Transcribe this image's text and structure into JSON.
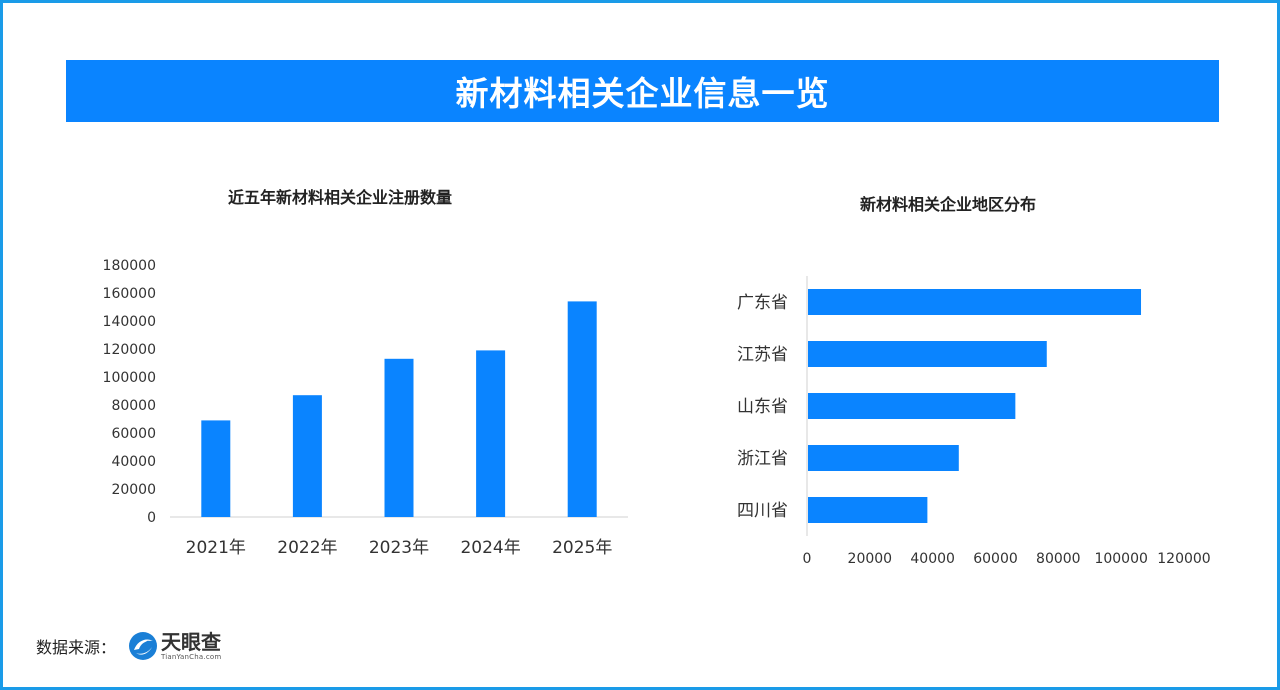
{
  "banner": {
    "title": "新材料相关企业信息一览"
  },
  "source": {
    "label": "数据来源：",
    "logo_cn": "天眼查",
    "logo_en": "TianYanCha.com"
  },
  "colors": {
    "accent": "#0a84ff",
    "frame": "#1a9be8"
  },
  "chart_data": [
    {
      "type": "bar",
      "title": "近五年新材料相关企业注册数量",
      "categories": [
        "2021年",
        "2022年",
        "2023年",
        "2024年",
        "2025年"
      ],
      "values": [
        69000,
        87000,
        113000,
        119000,
        154000
      ],
      "ylim": [
        0,
        180000
      ],
      "yticks": [
        0,
        20000,
        40000,
        60000,
        80000,
        100000,
        120000,
        140000,
        160000,
        180000
      ],
      "grid": false,
      "color": "#0a84ff"
    },
    {
      "type": "bar",
      "orientation": "horizontal",
      "title": "新材料相关企业地区分布",
      "categories": [
        "广东省",
        "江苏省",
        "山东省",
        "浙江省",
        "四川省"
      ],
      "values": [
        106000,
        76000,
        66000,
        48000,
        38000
      ],
      "xlim": [
        0,
        120000
      ],
      "xticks": [
        0,
        20000,
        40000,
        60000,
        80000,
        100000,
        120000
      ],
      "grid": false,
      "color": "#0a84ff"
    }
  ]
}
